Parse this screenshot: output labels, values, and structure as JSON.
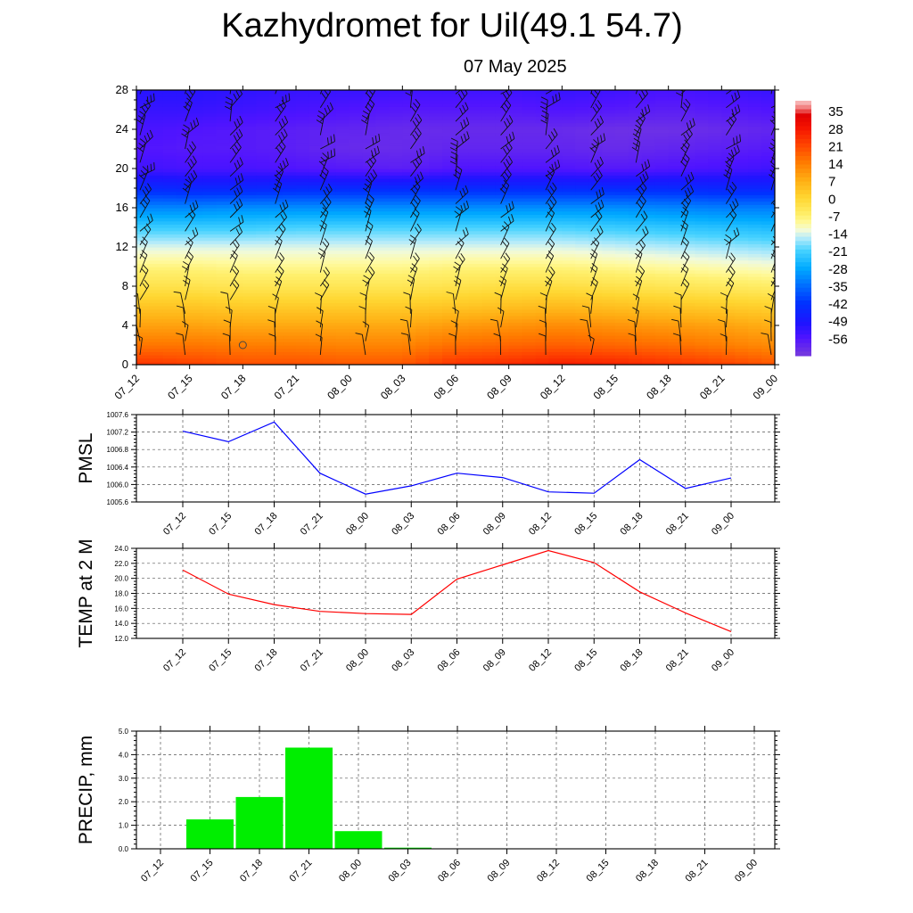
{
  "title": "Kazhydromet for Uil(49.1 54.7)",
  "subtitle": "07 May 2025",
  "time_labels": [
    "07_12",
    "07_15",
    "07_18",
    "07_21",
    "08_00",
    "08_03",
    "08_06",
    "08_09",
    "08_12",
    "08_15",
    "08_18",
    "08_21",
    "09_00"
  ],
  "colors": {
    "pmsl_line": "#0000ff",
    "temp_line": "#ff0000",
    "precip_bar": "#00ee00",
    "grid": "#555555",
    "wind_barb": "#111111"
  },
  "chart_data": [
    {
      "id": "temperature-cross-section",
      "type": "heatmap",
      "x": [
        "07_12",
        "07_15",
        "07_18",
        "07_21",
        "08_00",
        "08_03",
        "08_06",
        "08_09",
        "08_12",
        "08_15",
        "08_18",
        "08_21",
        "09_00"
      ],
      "ylim": [
        0,
        28
      ],
      "y_ticks": [
        0,
        4,
        8,
        12,
        16,
        20,
        24,
        28
      ],
      "levels": [
        0,
        2,
        4,
        6,
        8,
        10,
        12,
        14,
        16,
        18,
        20,
        22,
        24,
        26,
        28
      ],
      "values": [
        [
          24,
          22,
          20,
          20,
          19,
          19,
          24,
          25,
          27,
          26,
          24,
          22,
          19
        ],
        [
          15,
          15,
          14,
          14,
          13,
          13,
          16,
          17,
          18,
          17,
          16,
          14,
          12
        ],
        [
          9,
          9,
          8,
          8,
          8,
          8,
          10,
          11,
          12,
          11,
          10,
          9,
          7
        ],
        [
          3,
          3,
          2,
          2,
          2,
          2,
          3,
          4,
          5,
          4,
          3,
          2,
          1
        ],
        [
          -3,
          -3,
          -4,
          -4,
          -4,
          -4,
          -3,
          -2,
          -2,
          -3,
          -4,
          -5,
          -6
        ],
        [
          -8,
          -8,
          -9,
          -9,
          -9,
          -9,
          -8,
          -8,
          -8,
          -9,
          -10,
          -11,
          -12
        ],
        [
          -14,
          -14,
          -14,
          -14,
          -14,
          -14,
          -14,
          -14,
          -14,
          -15,
          -16,
          -17,
          -18
        ],
        [
          -22,
          -22,
          -22,
          -21,
          -21,
          -21,
          -21,
          -21,
          -21,
          -22,
          -23,
          -24,
          -25
        ],
        [
          -32,
          -32,
          -31,
          -31,
          -31,
          -31,
          -31,
          -31,
          -31,
          -31,
          -32,
          -33,
          -33
        ],
        [
          -44,
          -45,
          -45,
          -44,
          -44,
          -44,
          -44,
          -44,
          -44,
          -44,
          -44,
          -45,
          -45
        ],
        [
          -54,
          -55,
          -55,
          -56,
          -57,
          -58,
          -56,
          -56,
          -56,
          -57,
          -56,
          -55,
          -54
        ],
        [
          -56,
          -57,
          -57,
          -58,
          -60,
          -60,
          -59,
          -59,
          -59,
          -60,
          -59,
          -58,
          -57
        ],
        [
          -55,
          -56,
          -57,
          -58,
          -59,
          -60,
          -60,
          -60,
          -60,
          -61,
          -61,
          -60,
          -59
        ],
        [
          -53,
          -53,
          -54,
          -55,
          -56,
          -57,
          -57,
          -57,
          -56,
          -57,
          -58,
          -57,
          -56
        ],
        [
          -51,
          -51,
          -52,
          -53,
          -53,
          -54,
          -54,
          -54,
          -53,
          -54,
          -55,
          -54,
          -53
        ]
      ],
      "colorbar": {
        "labels": [
          "35",
          "28",
          "21",
          "14",
          "7",
          "0",
          "-7",
          "-14",
          "-21",
          "-28",
          "-35",
          "-42",
          "-49",
          "-56"
        ],
        "range": [
          -63,
          39
        ]
      },
      "overlay": "wind barbs"
    },
    {
      "id": "pmsl",
      "type": "line",
      "ylabel": "PMSL",
      "x": [
        "07_12",
        "07_15",
        "07_18",
        "07_21",
        "08_00",
        "08_03",
        "08_06",
        "08_09",
        "08_12",
        "08_15",
        "08_18",
        "08_21",
        "09_00"
      ],
      "values": [
        1007.22,
        1006.98,
        1007.43,
        1006.26,
        1005.78,
        1005.97,
        1006.26,
        1006.16,
        1005.83,
        1005.8,
        1006.57,
        1005.91,
        1006.15
      ],
      "ylim": [
        1005.6,
        1007.6
      ],
      "y_ticks": [
        "1005.6",
        "1006.0",
        "1006.4",
        "1006.8",
        "1007.2",
        "1007.6"
      ],
      "grid": true
    },
    {
      "id": "temp-2m",
      "type": "line",
      "ylabel": "TEMP at 2 M",
      "x": [
        "07_12",
        "07_15",
        "07_18",
        "07_21",
        "08_00",
        "08_03",
        "08_06",
        "08_09",
        "08_12",
        "08_15",
        "08_18",
        "08_21",
        "09_00"
      ],
      "values": [
        21.1,
        17.9,
        16.5,
        15.6,
        15.3,
        15.2,
        19.9,
        21.8,
        23.7,
        22.1,
        18.2,
        15.4,
        12.9
      ],
      "ylim": [
        12.0,
        24.0
      ],
      "y_ticks": [
        "12.0",
        "14.0",
        "16.0",
        "18.0",
        "20.0",
        "22.0",
        "24.0"
      ],
      "grid": true
    },
    {
      "id": "precip",
      "type": "bar",
      "ylabel": "PRECIP, mm",
      "categories": [
        "07_12",
        "07_15",
        "07_18",
        "07_21",
        "08_00",
        "08_03",
        "08_06",
        "08_09",
        "08_12",
        "08_15",
        "08_18",
        "08_21",
        "09_00"
      ],
      "values": [
        0,
        1.25,
        2.2,
        4.3,
        0.75,
        0.05,
        0,
        0,
        0,
        0,
        0,
        0,
        0
      ],
      "ylim": [
        0,
        5.0
      ],
      "y_ticks": [
        "0.0",
        "1.0",
        "2.0",
        "3.0",
        "4.0",
        "5.0"
      ],
      "grid": true
    }
  ]
}
